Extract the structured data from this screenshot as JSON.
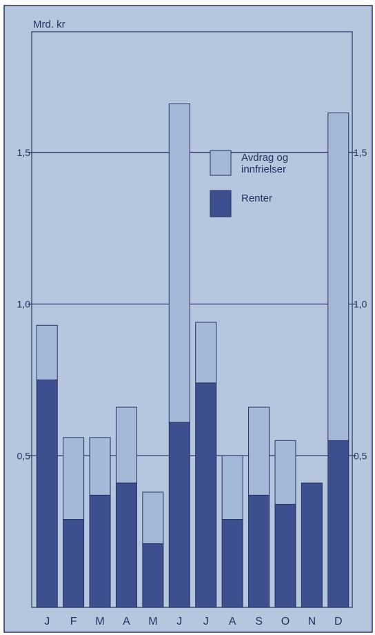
{
  "chart_data": {
    "type": "bar",
    "stacked": true,
    "ylabel": "Mrd. kr",
    "categories": [
      "J",
      "F",
      "M",
      "A",
      "M",
      "J",
      "J",
      "A",
      "S",
      "O",
      "N",
      "D"
    ],
    "series": [
      {
        "name": "Renter",
        "values": [
          0.75,
          0.29,
          0.37,
          0.41,
          0.21,
          0.61,
          0.74,
          0.29,
          0.37,
          0.34,
          0.41,
          0.55
        ]
      },
      {
        "name": "Avdrag og innfrielser",
        "values": [
          0.18,
          0.27,
          0.19,
          0.25,
          0.17,
          1.05,
          0.2,
          0.21,
          0.29,
          0.21,
          0.0,
          1.08
        ]
      }
    ],
    "ylim": [
      0,
      1.9
    ],
    "yticks": [
      0.5,
      1.0,
      1.5
    ],
    "ytick_labels": [
      "0,5",
      "1,0",
      "1,5"
    ],
    "grid": true,
    "legend_position": "top-right",
    "colors": {
      "background": "#b7c6df",
      "frame": "#26305f",
      "grid": "#2d3568",
      "renter": "#3e4f8f",
      "avdrag": "#a4b8d8"
    }
  }
}
